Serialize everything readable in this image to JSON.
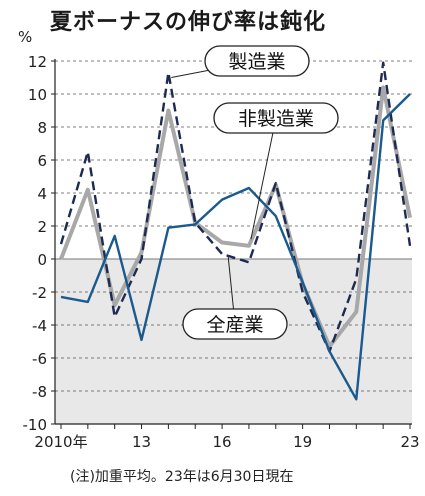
{
  "title": "夏ボーナスの伸び率は鈍化",
  "note": "(注)加重平均。23年は6月30日現在",
  "chart_data": {
    "type": "line",
    "y_unit_label": "%",
    "x": [
      2010,
      2011,
      2012,
      2013,
      2014,
      2015,
      2016,
      2017,
      2018,
      2019,
      2020,
      2021,
      2022,
      2023
    ],
    "x_tick_labels": [
      {
        "x": 2010,
        "label": "2010年"
      },
      {
        "x": 2013,
        "label": "13"
      },
      {
        "x": 2016,
        "label": "16"
      },
      {
        "x": 2019,
        "label": "19"
      },
      {
        "x": 2023,
        "label": "23"
      }
    ],
    "ylim": [
      -10,
      12
    ],
    "y_ticks": [
      -10,
      -8,
      -6,
      -4,
      -2,
      0,
      2,
      4,
      6,
      8,
      10,
      12
    ],
    "y_tick_labels": [
      "-10",
      "-8",
      "-6",
      "-4",
      "-2",
      "0",
      "2",
      "4",
      "6",
      "8",
      "10",
      "12"
    ],
    "grid": "horizontal dashed",
    "negative_region_shaded": true,
    "series": [
      {
        "name": "製造業",
        "style": "dashed",
        "color": "#1d2a52",
        "values": [
          0.9,
          6.5,
          -3.5,
          0.0,
          11.3,
          2.2,
          0.3,
          -0.2,
          4.6,
          -2.0,
          -5.6,
          -1.2,
          11.9,
          0.8
        ]
      },
      {
        "name": "非製造業",
        "style": "solid-thick",
        "color": "#a8a8a8",
        "values": [
          0.0,
          4.2,
          -2.8,
          0.4,
          9.0,
          2.2,
          1.0,
          0.8,
          4.5,
          -1.5,
          -5.3,
          -3.2,
          10.4,
          2.5
        ]
      },
      {
        "name": "全産業",
        "style": "solid",
        "color": "#1a5a8e",
        "values": [
          -2.3,
          -2.6,
          1.4,
          -4.9,
          1.9,
          2.1,
          3.6,
          4.3,
          2.6,
          -1.4,
          -5.6,
          -8.5,
          8.4,
          10.0
        ]
      }
    ],
    "labels": [
      {
        "series": "製造業",
        "text": "製造業"
      },
      {
        "series": "非製造業",
        "text": "非製造業"
      },
      {
        "series": "全産業",
        "text": "全産業"
      }
    ]
  },
  "colors": {
    "axis": "#222222",
    "grid": "#555555",
    "shade": "#e8e8e8",
    "label_border": "#222222"
  }
}
